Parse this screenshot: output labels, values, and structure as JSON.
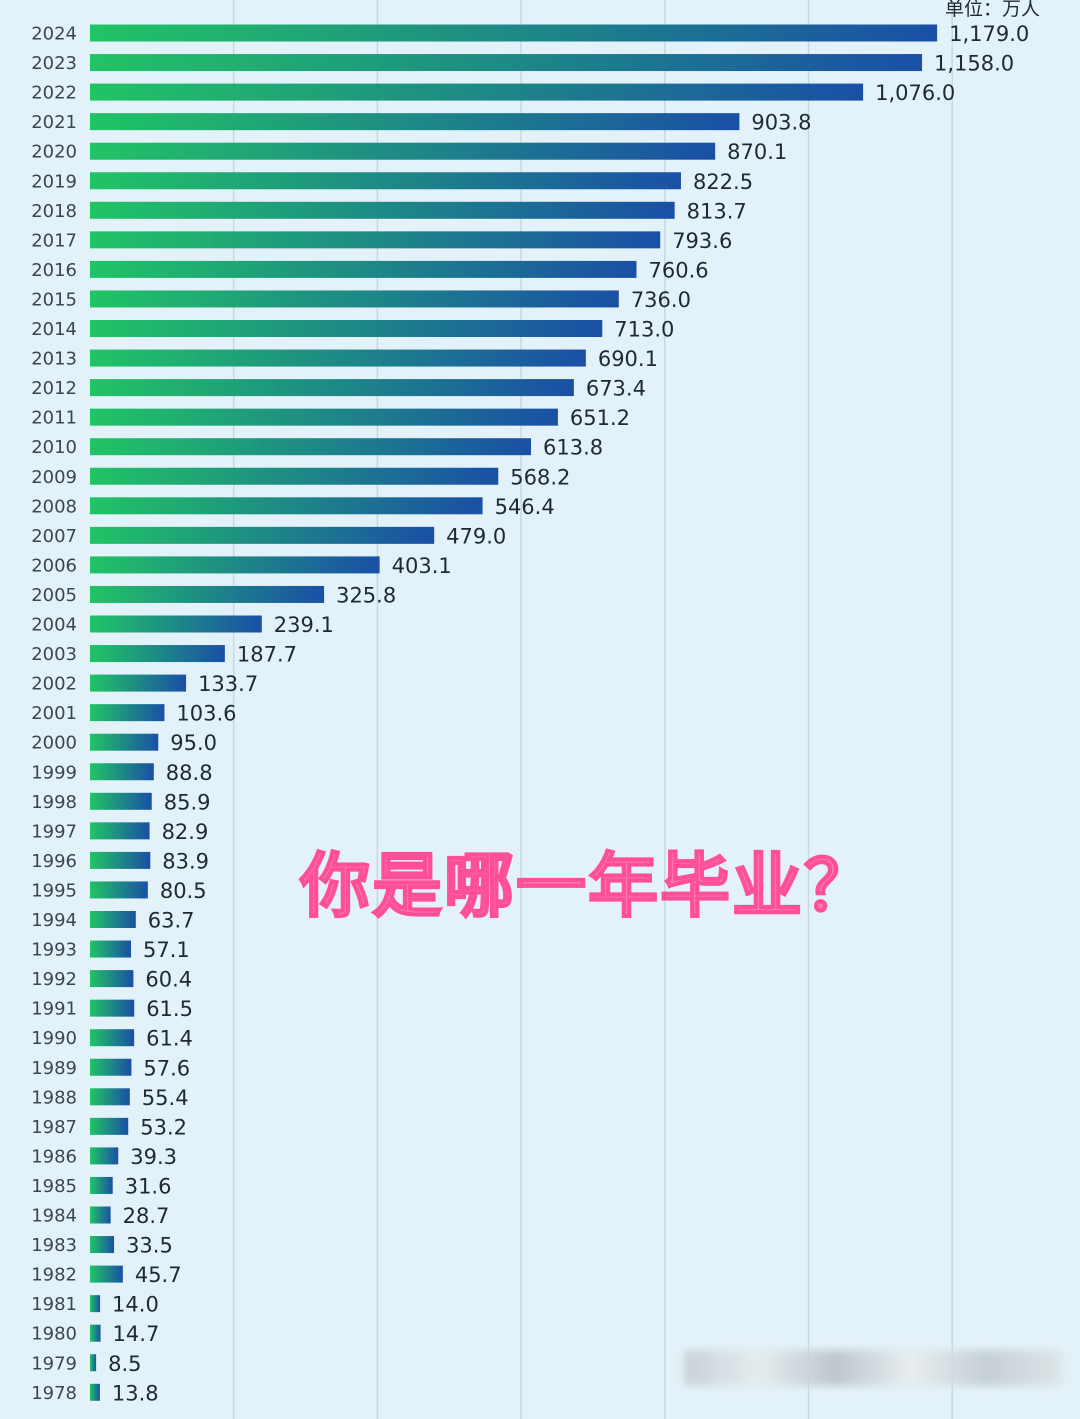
{
  "unit_label": "单位：万人",
  "overlay_text": "你是哪一年毕业？",
  "colors": {
    "bar_gradient_start": "#21c465",
    "bar_gradient_end": "#1a4fa6",
    "value_text": "#1d2a35",
    "year_text": "#3a4650",
    "gridline": "#c8d8e2",
    "overlay_pink": "#ff6fa8"
  },
  "chart_data": {
    "type": "bar",
    "orientation": "horizontal",
    "unit": "万人",
    "xlim": [
      0,
      1200
    ],
    "grid": true,
    "categories": [
      "2024",
      "2023",
      "2022",
      "2021",
      "2020",
      "2019",
      "2018",
      "2017",
      "2016",
      "2015",
      "2014",
      "2013",
      "2012",
      "2011",
      "2010",
      "2009",
      "2008",
      "2007",
      "2006",
      "2005",
      "2004",
      "2003",
      "2002",
      "2001",
      "2000",
      "1999",
      "1998",
      "1997",
      "1996",
      "1995",
      "1994",
      "1993",
      "1992",
      "1991",
      "1990",
      "1989",
      "1988",
      "1987",
      "1986",
      "1985",
      "1984",
      "1983",
      "1982",
      "1981",
      "1980",
      "1979",
      "1978"
    ],
    "values": [
      1179.0,
      1158.0,
      1076.0,
      903.8,
      870.1,
      822.5,
      813.7,
      793.6,
      760.6,
      736.0,
      713.0,
      690.1,
      673.4,
      651.2,
      613.8,
      568.2,
      546.4,
      479.0,
      403.1,
      325.8,
      239.1,
      187.7,
      133.7,
      103.6,
      95.0,
      88.8,
      85.9,
      82.9,
      83.9,
      80.5,
      63.7,
      57.1,
      60.4,
      61.5,
      61.4,
      57.6,
      55.4,
      53.2,
      39.3,
      31.6,
      28.7,
      33.5,
      45.7,
      14.0,
      14.7,
      8.5,
      13.8
    ],
    "value_labels": [
      "1,179.0",
      "1,158.0",
      "1,076.0",
      "903.8",
      "870.1",
      "822.5",
      "813.7",
      "793.6",
      "760.6",
      "736.0",
      "713.0",
      "690.1",
      "673.4",
      "651.2",
      "613.8",
      "568.2",
      "546.4",
      "479.0",
      "403.1",
      "325.8",
      "239.1",
      "187.7",
      "133.7",
      "103.6",
      "95.0",
      "88.8",
      "85.9",
      "82.9",
      "83.9",
      "80.5",
      "63.7",
      "57.1",
      "60.4",
      "61.5",
      "61.4",
      "57.6",
      "55.4",
      "53.2",
      "39.3",
      "31.6",
      "28.7",
      "33.5",
      "45.7",
      "14.0",
      "14.7",
      "8.5",
      "13.8"
    ]
  }
}
